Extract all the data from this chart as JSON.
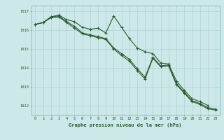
{
  "x": [
    0,
    1,
    2,
    3,
    4,
    5,
    6,
    7,
    8,
    9,
    10,
    11,
    12,
    13,
    14,
    15,
    16,
    17,
    18,
    19,
    20,
    21,
    22,
    23
  ],
  "series1": [
    1016.3,
    1016.4,
    1016.7,
    1016.8,
    1016.55,
    1016.45,
    1016.15,
    1016.05,
    1016.1,
    1015.85,
    1016.75,
    1016.15,
    1015.55,
    1015.05,
    1014.85,
    1014.75,
    1014.25,
    1014.2,
    1013.3,
    1012.8,
    1012.35,
    1012.2,
    1012.0,
    null
  ],
  "series2": [
    1016.3,
    1016.4,
    1016.7,
    1016.75,
    1016.45,
    1016.2,
    1015.85,
    1015.75,
    1015.65,
    1015.55,
    1015.05,
    1014.75,
    1014.45,
    1013.95,
    1013.5,
    1014.55,
    1014.1,
    1014.15,
    1013.15,
    1012.7,
    1012.25,
    1012.1,
    1011.88,
    1011.8
  ],
  "series3": [
    1016.3,
    1016.4,
    1016.65,
    1016.7,
    1016.4,
    1016.1,
    1015.8,
    1015.7,
    1015.6,
    1015.5,
    1015.0,
    1014.65,
    1014.35,
    1013.85,
    1013.4,
    1014.5,
    1014.05,
    1014.1,
    1013.1,
    1012.65,
    1012.2,
    1012.05,
    1011.82,
    1011.75
  ],
  "bg_color": "#cce8e8",
  "grid_color": "#aacccc",
  "line_color": "#2d5a2d",
  "ylim_min": 1011.5,
  "ylim_max": 1017.3,
  "yticks": [
    1012,
    1013,
    1014,
    1015,
    1016,
    1017
  ],
  "xlabel": "Graphe pression niveau de la mer (hPa)",
  "marker": "+",
  "linewidth": 0.8,
  "markersize": 2.5,
  "tick_fontsize": 4.0,
  "xlabel_fontsize": 5.0
}
